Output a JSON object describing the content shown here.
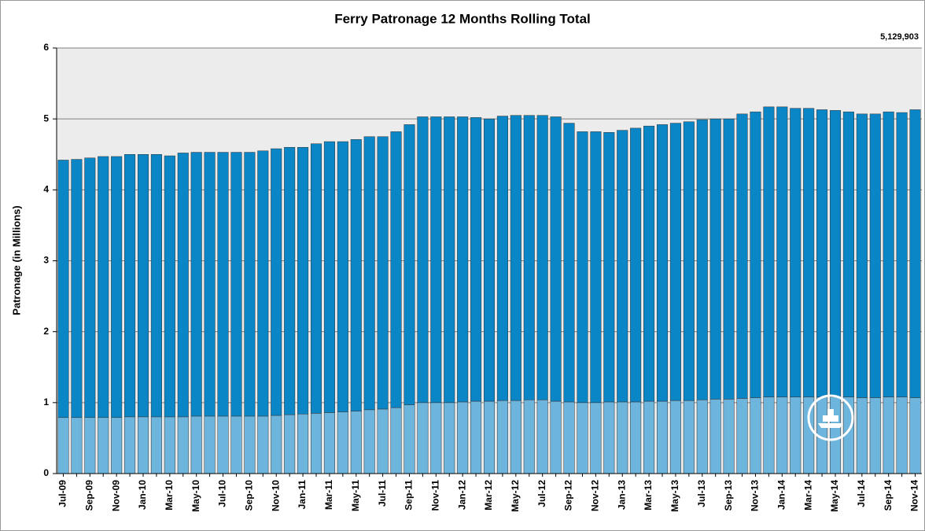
{
  "chart_data": {
    "type": "stacked-bar",
    "title": "Ferry Patronage 12 Months Rolling Total",
    "annotation": "5,129,903",
    "y_label": "Patronage (in Millions)",
    "categories": [
      "Jul-09",
      null,
      "Sep-09",
      null,
      "Nov-09",
      null,
      "Jan-10",
      null,
      "Mar-10",
      null,
      "May-10",
      null,
      "Jul-10",
      null,
      "Sep-10",
      null,
      "Nov-10",
      null,
      "Jan-11",
      null,
      "Mar-11",
      null,
      "May-11",
      null,
      "Jul-11",
      null,
      "Sep-11",
      null,
      "Nov-11",
      null,
      "Jan-12",
      null,
      "Mar-12",
      null,
      "May-12",
      null,
      "Jul-12",
      null,
      "Sep-12",
      null,
      "Nov-12",
      null,
      "Jan-13",
      null,
      "Mar-13",
      null,
      "May-13",
      null,
      "Jul-13",
      null,
      "Sep-13",
      null,
      "Nov-13",
      null,
      "Jan-14",
      null,
      "Mar-14",
      null,
      "May-14",
      null,
      "Jul-14",
      null,
      "Sep-14",
      null,
      "Nov-14"
    ],
    "series": [
      {
        "color": "#6db5dd",
        "values": [
          0.79,
          0.79,
          0.79,
          0.79,
          0.79,
          0.8,
          0.8,
          0.8,
          0.8,
          0.8,
          0.81,
          0.81,
          0.81,
          0.81,
          0.81,
          0.81,
          0.82,
          0.83,
          0.84,
          0.85,
          0.86,
          0.87,
          0.88,
          0.9,
          0.91,
          0.93,
          0.97,
          1.0,
          1.0,
          1.0,
          1.01,
          1.02,
          1.02,
          1.03,
          1.03,
          1.04,
          1.04,
          1.02,
          1.01,
          1.0,
          1.0,
          1.01,
          1.01,
          1.01,
          1.02,
          1.02,
          1.03,
          1.03,
          1.04,
          1.05,
          1.05,
          1.06,
          1.07,
          1.08,
          1.08,
          1.08,
          1.08,
          1.08,
          1.08,
          1.08,
          1.07,
          1.07,
          1.08,
          1.08,
          1.07
        ]
      },
      {
        "color": "#0a85c5",
        "values": [
          3.63,
          3.64,
          3.66,
          3.68,
          3.68,
          3.7,
          3.7,
          3.7,
          3.68,
          3.72,
          3.72,
          3.72,
          3.72,
          3.72,
          3.72,
          3.74,
          3.76,
          3.77,
          3.76,
          3.8,
          3.82,
          3.81,
          3.83,
          3.85,
          3.84,
          3.89,
          3.95,
          4.03,
          4.03,
          4.03,
          4.02,
          4.0,
          3.98,
          4.01,
          4.02,
          4.01,
          4.01,
          4.01,
          3.93,
          3.82,
          3.82,
          3.8,
          3.83,
          3.86,
          3.88,
          3.9,
          3.91,
          3.93,
          3.95,
          3.95,
          3.95,
          4.01,
          4.03,
          4.09,
          4.09,
          4.07,
          4.07,
          4.05,
          4.04,
          4.02,
          4.0,
          4.0,
          4.02,
          4.01,
          4.06
        ]
      }
    ],
    "ylim": [
      0,
      6
    ],
    "yticks": [
      0,
      1,
      2,
      3,
      4,
      5,
      6
    ],
    "grid": true
  }
}
